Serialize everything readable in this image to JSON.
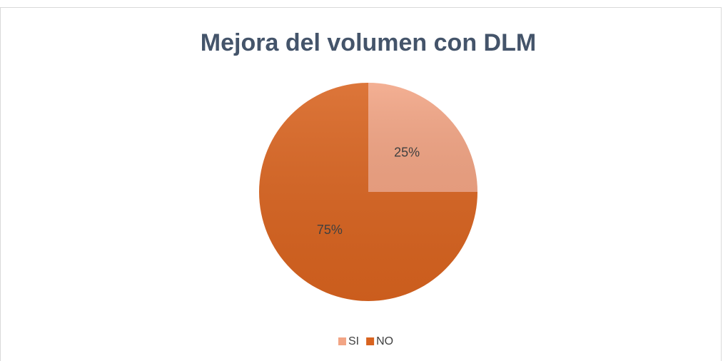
{
  "chart_data": {
    "type": "pie",
    "title": "Mejora del volumen con DLM",
    "categories": [
      "SI",
      "NO"
    ],
    "values": [
      25,
      75
    ],
    "value_labels": [
      "25%",
      "75%"
    ],
    "colors": [
      "#f2a585",
      "#d8631f"
    ],
    "legend": "bottom"
  }
}
